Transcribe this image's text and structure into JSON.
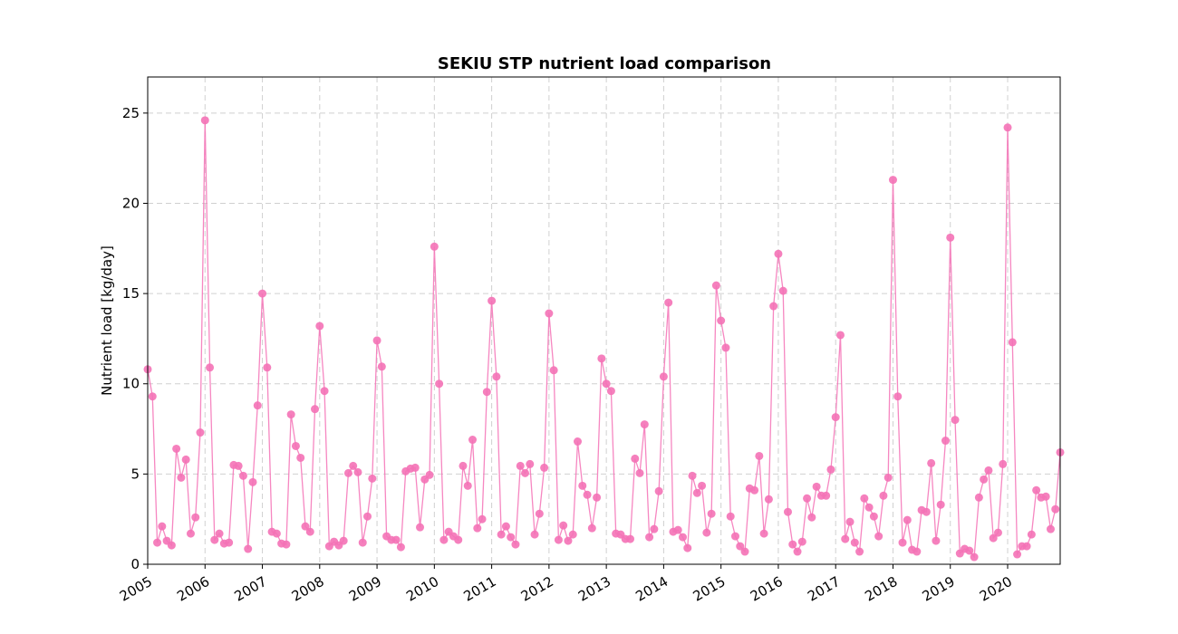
{
  "chart_data": {
    "type": "line",
    "title": "SEKIU STP nutrient load comparison",
    "xlabel": "",
    "ylabel": "Nutrient load [kg/day]",
    "color": "#f472b6",
    "marker": "circle",
    "grid": true,
    "xlim": [
      "2005-01",
      "2020-12"
    ],
    "ylim": [
      0,
      27
    ],
    "yticks": [
      0,
      5,
      10,
      15,
      20,
      25
    ],
    "xticks": [
      "2005",
      "2006",
      "2007",
      "2008",
      "2009",
      "2010",
      "2011",
      "2012",
      "2013",
      "2014",
      "2015",
      "2016",
      "2017",
      "2018",
      "2019",
      "2020"
    ],
    "x_start": "2005-01",
    "x_step": "1 month",
    "values": [
      10.8,
      9.3,
      1.2,
      2.1,
      1.3,
      1.05,
      6.4,
      4.8,
      5.8,
      1.7,
      2.6,
      7.3,
      24.6,
      10.9,
      1.35,
      1.7,
      1.15,
      1.2,
      5.5,
      5.45,
      4.9,
      0.85,
      4.55,
      8.8,
      15.0,
      10.9,
      1.8,
      1.7,
      1.15,
      1.1,
      8.3,
      6.55,
      5.9,
      2.1,
      1.8,
      8.6,
      13.2,
      9.6,
      1.0,
      1.25,
      1.05,
      1.3,
      5.05,
      5.45,
      5.1,
      1.2,
      2.65,
      4.75,
      12.4,
      10.95,
      1.55,
      1.35,
      1.35,
      0.95,
      5.15,
      5.3,
      5.35,
      2.05,
      4.7,
      4.95,
      17.6,
      10.0,
      1.35,
      1.8,
      1.55,
      1.35,
      5.45,
      4.35,
      6.9,
      2.0,
      2.5,
      9.55,
      14.6,
      10.4,
      1.65,
      2.1,
      1.5,
      1.1,
      5.45,
      5.05,
      5.55,
      1.65,
      2.8,
      5.35,
      13.9,
      10.75,
      1.35,
      2.15,
      1.3,
      1.65,
      6.8,
      4.35,
      3.85,
      2.0,
      3.7,
      11.4,
      10.0,
      9.6,
      1.7,
      1.65,
      1.4,
      1.4,
      5.85,
      5.05,
      7.75,
      1.5,
      1.95,
      4.05,
      10.4,
      14.5,
      1.8,
      1.9,
      1.5,
      0.9,
      4.9,
      3.95,
      4.35,
      1.75,
      2.8,
      15.45,
      13.5,
      12.0,
      2.65,
      1.55,
      1.0,
      0.7,
      4.2,
      4.1,
      6.0,
      1.7,
      3.6,
      14.3,
      17.2,
      15.15,
      2.9,
      1.1,
      0.7,
      1.25,
      3.65,
      2.6,
      4.3,
      3.8,
      3.8,
      5.25,
      8.15,
      12.7,
      1.4,
      2.35,
      1.2,
      0.7,
      3.65,
      3.15,
      2.65,
      1.55,
      3.8,
      4.8,
      21.3,
      9.3,
      1.2,
      2.45,
      0.8,
      0.7,
      3.0,
      2.9,
      5.6,
      1.3,
      3.3,
      6.85,
      18.1,
      8.0,
      0.6,
      0.85,
      0.75,
      0.4,
      3.7,
      4.7,
      5.2,
      1.45,
      1.75,
      5.55,
      24.2,
      12.3,
      0.55,
      1.0,
      1.0,
      1.65,
      4.1,
      3.7,
      3.75,
      1.95,
      3.05,
      6.2
    ]
  }
}
